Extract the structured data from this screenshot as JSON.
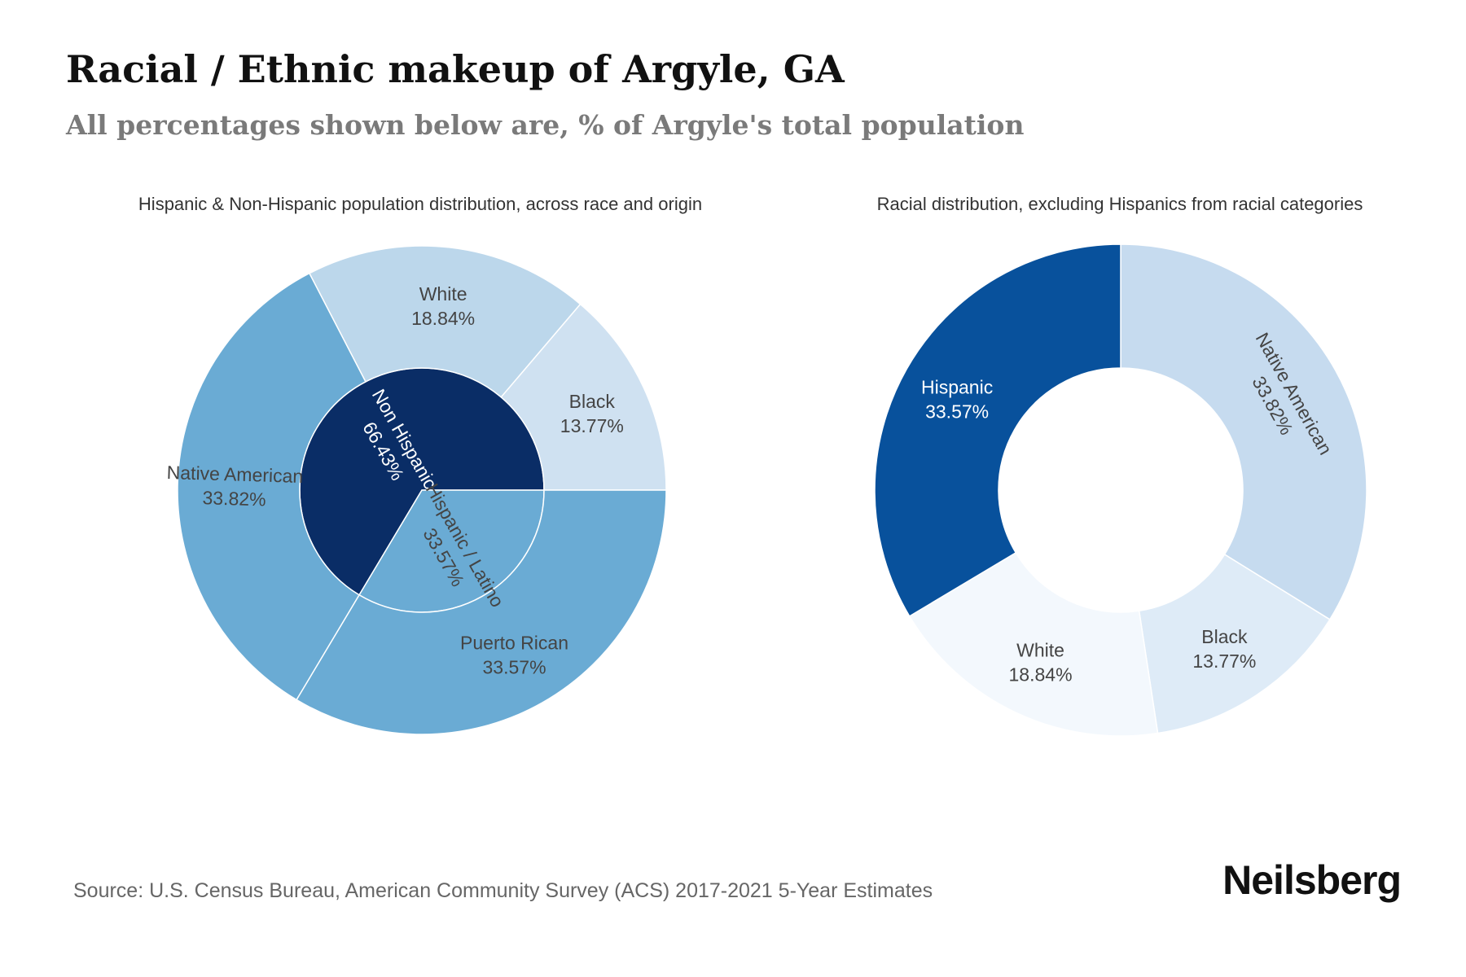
{
  "title": "Racial / Ethnic makeup of Argyle, GA",
  "subtitle": "All percentages shown below are, % of Argyle's total population",
  "source": "Source: U.S. Census Bureau, American Community Survey (ACS) 2017-2021 5-Year Estimates",
  "brand": "Neilsberg",
  "chart_data": [
    {
      "type": "sunburst",
      "title": "Hispanic & Non-Hispanic population distribution, across race and origin",
      "inner": [
        {
          "name": "Non Hispanic",
          "value": 66.43,
          "label": "66.43%",
          "color": "#0a2d66"
        },
        {
          "name": "Hispanic / Latino",
          "value": 33.57,
          "label": "33.57%",
          "color": "#6aabd4"
        }
      ],
      "outer": [
        {
          "name": "Native American",
          "value": 33.82,
          "label": "33.82%",
          "color": "#6aabd4",
          "parent": "Non Hispanic"
        },
        {
          "name": "White",
          "value": 18.84,
          "label": "18.84%",
          "color": "#bcd7eb",
          "parent": "Non Hispanic"
        },
        {
          "name": "Black",
          "value": 13.77,
          "label": "13.77%",
          "color": "#cfe1f1",
          "parent": "Non Hispanic"
        },
        {
          "name": "Puerto Rican",
          "value": 33.57,
          "label": "33.57%",
          "color": "#6aabd4",
          "parent": "Hispanic / Latino"
        }
      ]
    },
    {
      "type": "donut",
      "title": "Racial distribution, excluding Hispanics from racial categories",
      "slices": [
        {
          "name": "Native American",
          "value": 33.82,
          "label": "33.82%",
          "color": "#c6dbef"
        },
        {
          "name": "Black",
          "value": 13.77,
          "label": "13.77%",
          "color": "#deebf7"
        },
        {
          "name": "White",
          "value": 18.84,
          "label": "18.84%",
          "color": "#f3f8fd"
        },
        {
          "name": "Hispanic",
          "value": 33.57,
          "label": "33.57%",
          "color": "#08519c"
        }
      ]
    }
  ]
}
